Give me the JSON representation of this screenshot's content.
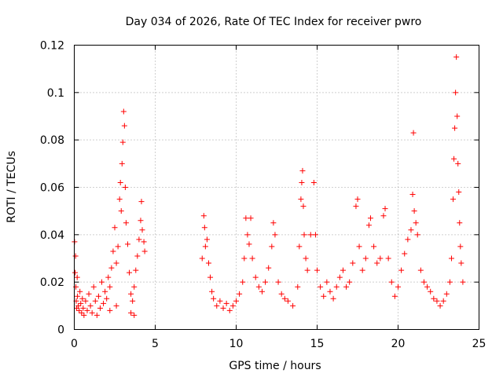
{
  "chart_data": {
    "type": "scatter",
    "title": "Day 034 of 2026, Rate Of TEC Index for receiver pwro",
    "xlabel": "GPS time / hours",
    "ylabel": "ROTI / TECUs",
    "xlim": [
      0,
      25
    ],
    "ylim": [
      0,
      0.12
    ],
    "xticks": [
      0,
      5,
      10,
      15,
      20,
      25
    ],
    "yticks": [
      0,
      0.02,
      0.04,
      0.06,
      0.08,
      0.1,
      0.12
    ],
    "xtick_labels": [
      "0",
      "5",
      "10",
      "15",
      "20",
      "25"
    ],
    "ytick_labels": [
      "0",
      "0.02",
      "0.04",
      "0.06",
      "0.08",
      "0.1",
      "0.12"
    ],
    "grid": true,
    "marker": "plus",
    "color": "#ff0000",
    "series": [
      {
        "points": [
          [
            0.02,
            0.037
          ],
          [
            0.05,
            0.024
          ],
          [
            0.08,
            0.031
          ],
          [
            0.1,
            0.018
          ],
          [
            0.12,
            0.012
          ],
          [
            0.15,
            0.009
          ],
          [
            0.18,
            0.022
          ],
          [
            0.2,
            0.014
          ],
          [
            0.25,
            0.01
          ],
          [
            0.3,
            0.008
          ],
          [
            0.35,
            0.016
          ],
          [
            0.4,
            0.011
          ],
          [
            0.45,
            0.007
          ],
          [
            0.5,
            0.013
          ],
          [
            0.55,
            0.009
          ],
          [
            0.6,
            0.006
          ],
          [
            0.7,
            0.012
          ],
          [
            0.8,
            0.008
          ],
          [
            0.9,
            0.015
          ],
          [
            1.0,
            0.01
          ],
          [
            1.1,
            0.007
          ],
          [
            1.2,
            0.018
          ],
          [
            1.3,
            0.012
          ],
          [
            1.4,
            0.006
          ],
          [
            1.5,
            0.014
          ],
          [
            1.6,
            0.009
          ],
          [
            1.7,
            0.02
          ],
          [
            1.8,
            0.011
          ],
          [
            1.9,
            0.016
          ],
          [
            2.0,
            0.013
          ],
          [
            2.1,
            0.022
          ],
          [
            2.2,
            0.018
          ],
          [
            2.3,
            0.026
          ],
          [
            2.4,
            0.033
          ],
          [
            2.5,
            0.043
          ],
          [
            2.6,
            0.028
          ],
          [
            2.7,
            0.035
          ],
          [
            2.8,
            0.055
          ],
          [
            2.85,
            0.062
          ],
          [
            2.9,
            0.05
          ],
          [
            2.95,
            0.07
          ],
          [
            3.0,
            0.079
          ],
          [
            3.05,
            0.092
          ],
          [
            3.1,
            0.086
          ],
          [
            3.15,
            0.06
          ],
          [
            3.2,
            0.045
          ],
          [
            3.3,
            0.036
          ],
          [
            3.4,
            0.024
          ],
          [
            3.5,
            0.015
          ],
          [
            3.6,
            0.012
          ],
          [
            3.7,
            0.018
          ],
          [
            3.8,
            0.025
          ],
          [
            3.9,
            0.031
          ],
          [
            4.0,
            0.038
          ],
          [
            4.1,
            0.046
          ],
          [
            4.15,
            0.054
          ],
          [
            4.2,
            0.042
          ],
          [
            4.3,
            0.037
          ],
          [
            4.35,
            0.033
          ],
          [
            2.2,
            0.008
          ],
          [
            2.6,
            0.01
          ],
          [
            3.5,
            0.007
          ],
          [
            3.7,
            0.006
          ],
          [
            7.9,
            0.03
          ],
          [
            8.0,
            0.048
          ],
          [
            8.05,
            0.043
          ],
          [
            8.1,
            0.035
          ],
          [
            8.2,
            0.038
          ],
          [
            8.3,
            0.028
          ],
          [
            8.4,
            0.022
          ],
          [
            8.5,
            0.016
          ],
          [
            8.6,
            0.013
          ],
          [
            8.8,
            0.01
          ],
          [
            9.0,
            0.012
          ],
          [
            9.2,
            0.009
          ],
          [
            9.4,
            0.011
          ],
          [
            9.6,
            0.008
          ],
          [
            9.8,
            0.01
          ],
          [
            10.0,
            0.012
          ],
          [
            10.2,
            0.015
          ],
          [
            10.4,
            0.02
          ],
          [
            10.5,
            0.03
          ],
          [
            10.6,
            0.047
          ],
          [
            10.7,
            0.04
          ],
          [
            10.8,
            0.036
          ],
          [
            10.9,
            0.047
          ],
          [
            11.0,
            0.03
          ],
          [
            11.2,
            0.022
          ],
          [
            11.4,
            0.018
          ],
          [
            11.6,
            0.016
          ],
          [
            11.8,
            0.02
          ],
          [
            12.0,
            0.026
          ],
          [
            12.2,
            0.035
          ],
          [
            12.3,
            0.045
          ],
          [
            12.4,
            0.04
          ],
          [
            12.6,
            0.02
          ],
          [
            12.8,
            0.015
          ],
          [
            13.0,
            0.013
          ],
          [
            13.2,
            0.012
          ],
          [
            13.5,
            0.01
          ],
          [
            13.8,
            0.018
          ],
          [
            13.9,
            0.035
          ],
          [
            14.0,
            0.055
          ],
          [
            14.05,
            0.062
          ],
          [
            14.1,
            0.067
          ],
          [
            14.15,
            0.052
          ],
          [
            14.2,
            0.04
          ],
          [
            14.3,
            0.03
          ],
          [
            14.4,
            0.025
          ],
          [
            14.6,
            0.04
          ],
          [
            14.8,
            0.062
          ],
          [
            14.9,
            0.04
          ],
          [
            15.0,
            0.025
          ],
          [
            15.2,
            0.018
          ],
          [
            15.4,
            0.014
          ],
          [
            15.6,
            0.02
          ],
          [
            15.8,
            0.016
          ],
          [
            16.0,
            0.013
          ],
          [
            16.2,
            0.018
          ],
          [
            16.4,
            0.022
          ],
          [
            16.6,
            0.025
          ],
          [
            16.8,
            0.018
          ],
          [
            17.0,
            0.02
          ],
          [
            17.2,
            0.028
          ],
          [
            17.4,
            0.052
          ],
          [
            17.5,
            0.055
          ],
          [
            17.6,
            0.035
          ],
          [
            17.8,
            0.025
          ],
          [
            18.0,
            0.03
          ],
          [
            18.2,
            0.044
          ],
          [
            18.3,
            0.047
          ],
          [
            18.5,
            0.035
          ],
          [
            18.7,
            0.028
          ],
          [
            18.9,
            0.03
          ],
          [
            19.1,
            0.048
          ],
          [
            19.2,
            0.051
          ],
          [
            19.4,
            0.03
          ],
          [
            19.6,
            0.02
          ],
          [
            19.8,
            0.014
          ],
          [
            20.0,
            0.018
          ],
          [
            20.2,
            0.025
          ],
          [
            20.4,
            0.032
          ],
          [
            20.6,
            0.038
          ],
          [
            20.8,
            0.042
          ],
          [
            20.9,
            0.057
          ],
          [
            20.95,
            0.083
          ],
          [
            21.0,
            0.05
          ],
          [
            21.1,
            0.045
          ],
          [
            21.2,
            0.04
          ],
          [
            21.4,
            0.025
          ],
          [
            21.6,
            0.02
          ],
          [
            21.8,
            0.018
          ],
          [
            22.0,
            0.016
          ],
          [
            22.2,
            0.013
          ],
          [
            22.4,
            0.012
          ],
          [
            22.6,
            0.01
          ],
          [
            22.8,
            0.012
          ],
          [
            23.0,
            0.015
          ],
          [
            23.2,
            0.02
          ],
          [
            23.3,
            0.03
          ],
          [
            23.4,
            0.055
          ],
          [
            23.45,
            0.072
          ],
          [
            23.5,
            0.085
          ],
          [
            23.55,
            0.1
          ],
          [
            23.6,
            0.115
          ],
          [
            23.65,
            0.09
          ],
          [
            23.7,
            0.07
          ],
          [
            23.75,
            0.058
          ],
          [
            23.8,
            0.045
          ],
          [
            23.85,
            0.035
          ],
          [
            23.9,
            0.028
          ],
          [
            24.0,
            0.02
          ]
        ]
      }
    ]
  }
}
